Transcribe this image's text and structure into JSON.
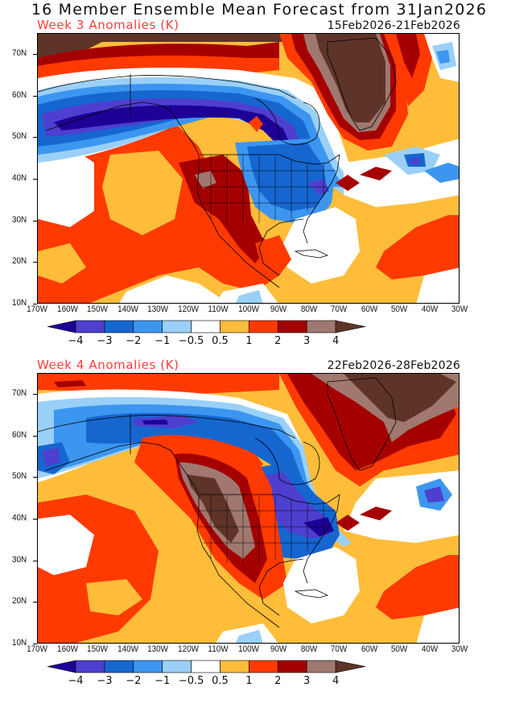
{
  "title": "16 Member Ensemble Mean Forecast from 31Jan2026",
  "panels": [
    {
      "subtitle": "Week 3 Anomalies (K)",
      "date_range": "15Feb2026-21Feb2026",
      "lat_labels": [
        "70N",
        "60N",
        "50N",
        "40N",
        "30N",
        "20N",
        "10N"
      ],
      "lon_labels": [
        "170W",
        "160W",
        "150W",
        "140W",
        "130W",
        "120W",
        "110W",
        "100W",
        "90W",
        "80W",
        "70W",
        "60W",
        "50W",
        "40W",
        "30W"
      ],
      "colorbar_labels": [
        "-4",
        "-3",
        "-2",
        "-1",
        "-0.5",
        "0.5",
        "1",
        "2",
        "3",
        "4"
      ]
    },
    {
      "subtitle": "Week 4 Anomalies (K)",
      "date_range": "22Feb2026-28Feb2026",
      "lat_labels": [
        "70N",
        "60N",
        "50N",
        "40N",
        "30N",
        "20N",
        "10N"
      ],
      "lon_labels": [
        "170W",
        "160W",
        "150W",
        "140W",
        "130W",
        "120W",
        "110W",
        "100W",
        "90W",
        "80W",
        "70W",
        "60W",
        "50W",
        "40W",
        "30W"
      ],
      "colorbar_labels": [
        "-4",
        "-3",
        "-2",
        "-1",
        "-0.5",
        "0.5",
        "1",
        "2",
        "3",
        "4"
      ]
    }
  ],
  "colorbar": {
    "thresholds": [
      -4,
      -3,
      -2,
      -1,
      -0.5,
      0.5,
      1,
      2,
      3,
      4
    ],
    "colors": [
      "#1e0096",
      "#4e3fcf",
      "#1666d0",
      "#3c96f0",
      "#9ad0f8",
      "#ffffff",
      "#ffbd3a",
      "#ff3a00",
      "#a50000",
      "#a07870",
      "#5e3428"
    ]
  },
  "colors": {
    "subtitle": "#ff3b3b",
    "land_outline": "#000000"
  }
}
